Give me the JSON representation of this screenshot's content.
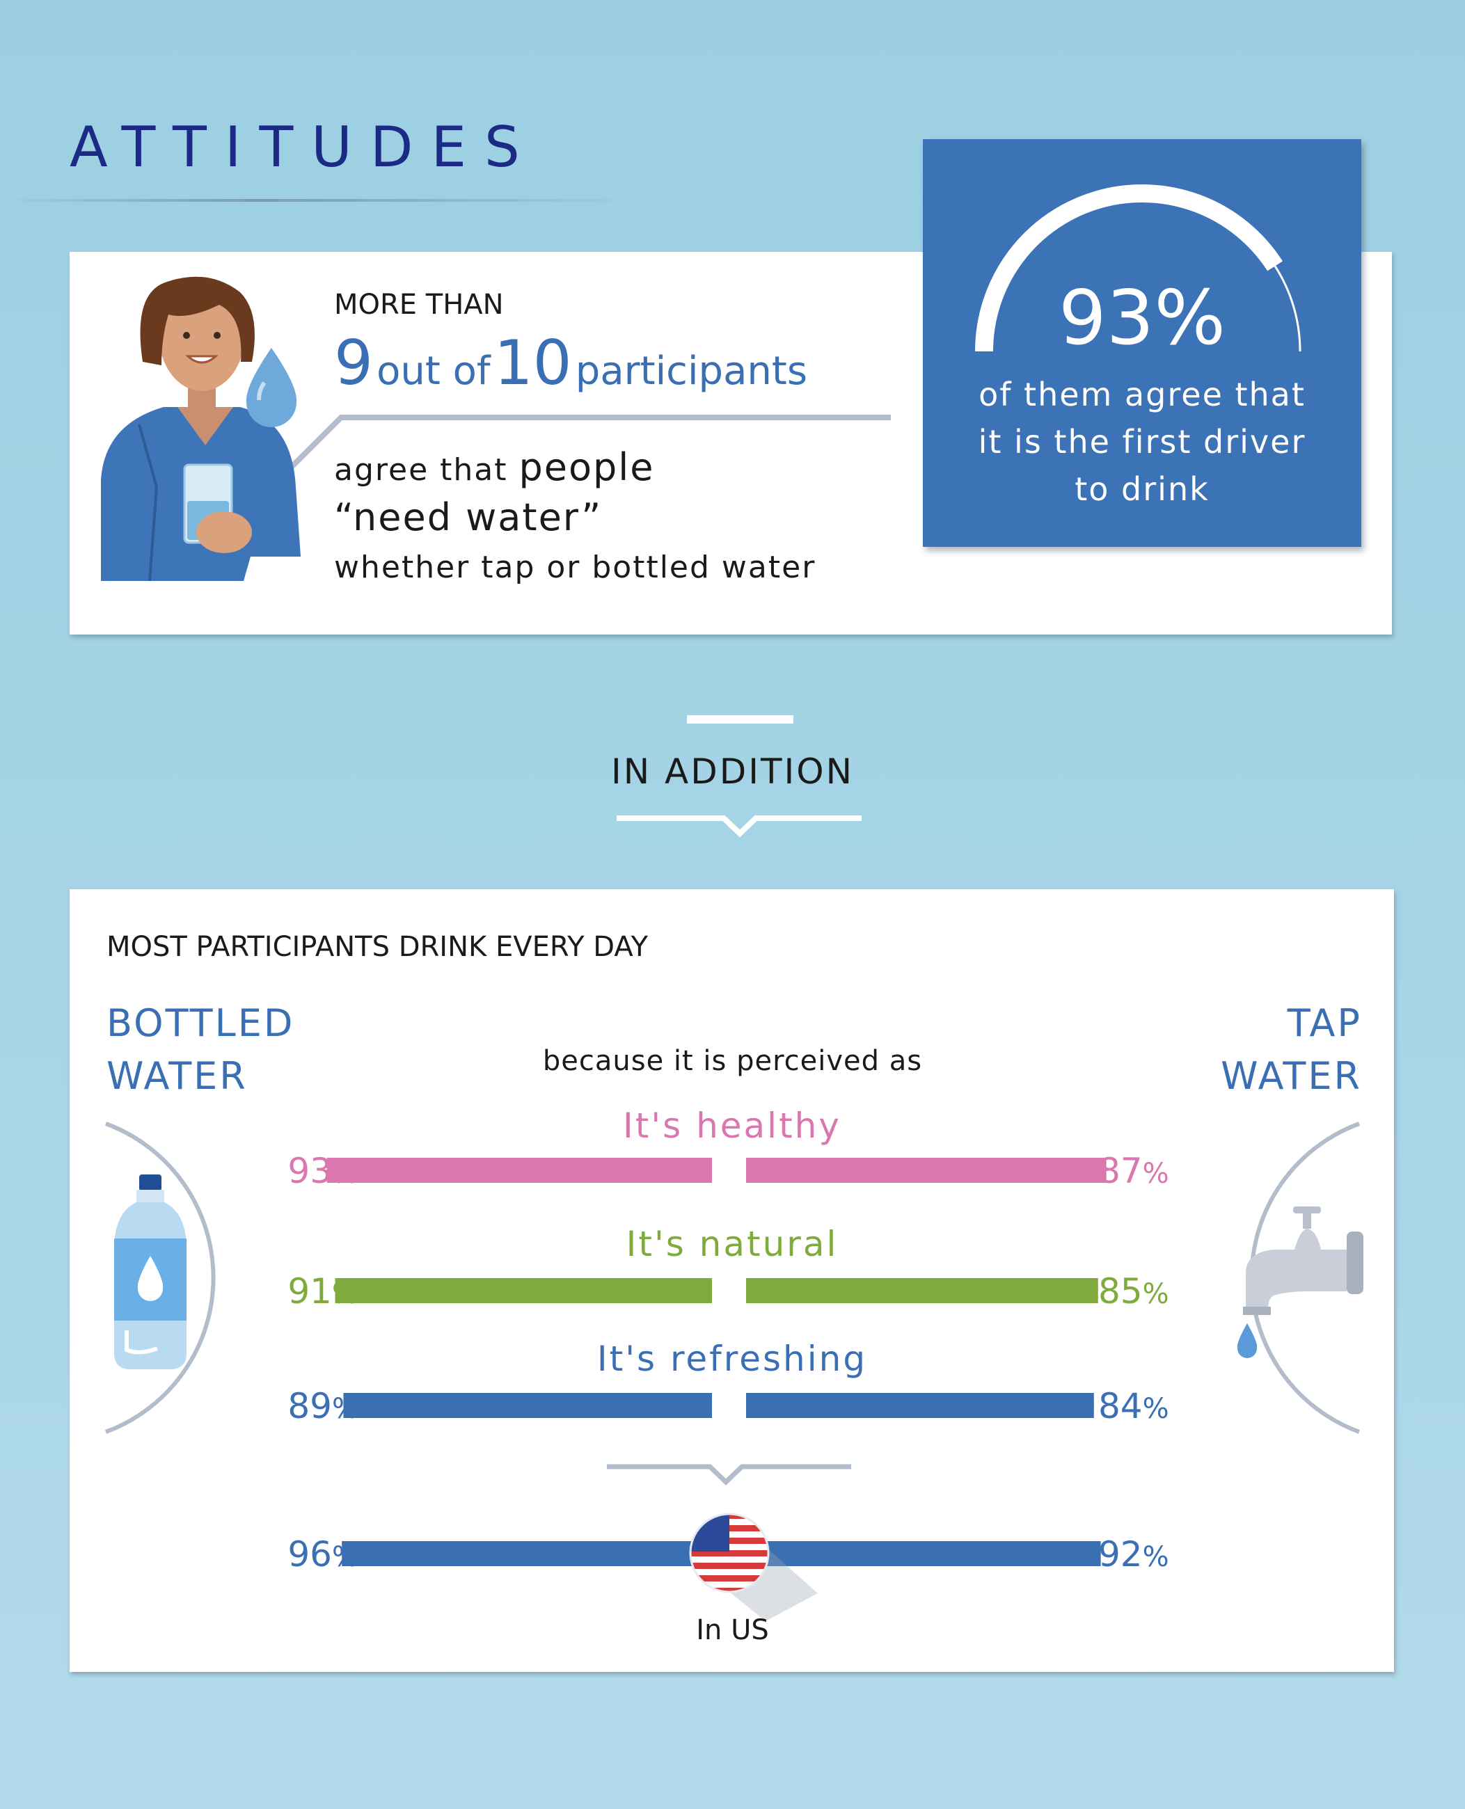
{
  "title": "ATTITUDES",
  "card1": {
    "more_than": "MORE THAN",
    "count": "9",
    "out_of": "out of",
    "total": "10",
    "participants": "participants",
    "agree_that": "agree that ",
    "people": "people",
    "need_water": "“need water”",
    "whether": "whether tap or bottled water"
  },
  "stat": {
    "value": "93%",
    "line1": "of them agree that",
    "line2": "it is the first driver",
    "line3": "to drink",
    "gauge_fraction": 0.93
  },
  "in_addition": "IN ADDITION",
  "section2": {
    "title": "MOST PARTICIPANTS DRINK EVERY DAY",
    "bottled_label_1": "BOTTLED",
    "bottled_label_2": "WATER",
    "tap_label_1": "TAP",
    "tap_label_2": "WATER",
    "because": "because it is perceived as",
    "us_label": "In US"
  },
  "icons": {
    "woman": "woman-with-glass-icon",
    "drop": "water-drop-icon",
    "bottle": "water-bottle-icon",
    "tap": "water-tap-icon",
    "flag": "us-flag-icon"
  },
  "colors": {
    "healthy": "#d977ae",
    "natural": "#7fab3d",
    "refreshing": "#3a6fb4",
    "stat_box": "#3c72b6",
    "title": "#1c2a86"
  },
  "chart_data": {
    "type": "bar",
    "categories": [
      "It's healthy",
      "It's natural",
      "It's refreshing",
      "In US"
    ],
    "series": [
      {
        "name": "BOTTLED WATER",
        "values": [
          93,
          91,
          89,
          96
        ],
        "labels": [
          "93%",
          "91%",
          "89%",
          "96%"
        ]
      },
      {
        "name": "TAP WATER",
        "values": [
          87,
          85,
          84,
          92
        ],
        "labels": [
          "87%",
          "85%",
          "84%",
          "92%"
        ]
      }
    ],
    "ylim": [
      0,
      100
    ],
    "unit": "%"
  }
}
